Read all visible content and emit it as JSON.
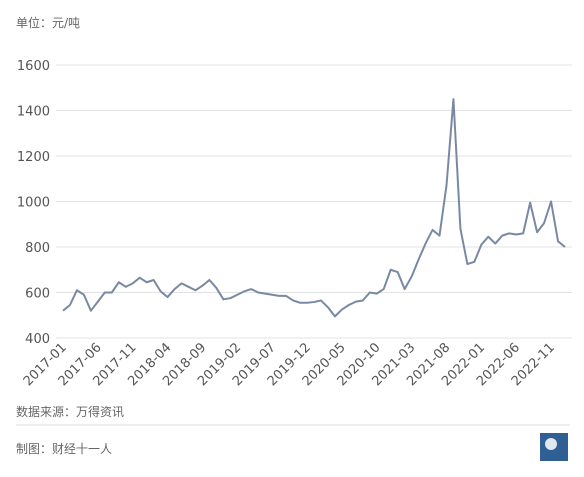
{
  "chart_data": {
    "type": "line",
    "unit": "单位：元/吨",
    "source": "数据来源：万得资讯",
    "credit": "制图：财经十一人",
    "categories": [
      "2017-01",
      null,
      null,
      null,
      null,
      "2017-06",
      null,
      null,
      null,
      null,
      "2017-11",
      null,
      null,
      null,
      null,
      "2018-04",
      null,
      null,
      null,
      null,
      "2018-09",
      null,
      null,
      null,
      null,
      "2019-02",
      null,
      null,
      null,
      null,
      "2019-07",
      null,
      null,
      null,
      null,
      "2019-12",
      null,
      null,
      null,
      null,
      "2020-05",
      null,
      null,
      null,
      null,
      "2020-10",
      null,
      null,
      null,
      null,
      "2021-03",
      null,
      null,
      null,
      null,
      "2021-08",
      null,
      null,
      null,
      null,
      "2022-01",
      null,
      null,
      null,
      null,
      "2022-06",
      null,
      null,
      null,
      null,
      "2022-11",
      null,
      null
    ],
    "values": [
      520,
      545,
      610,
      590,
      520,
      560,
      600,
      600,
      645,
      625,
      640,
      665,
      645,
      655,
      605,
      580,
      615,
      640,
      625,
      610,
      630,
      655,
      620,
      570,
      575,
      590,
      605,
      615,
      600,
      595,
      590,
      585,
      585,
      565,
      555,
      555,
      558,
      565,
      535,
      495,
      525,
      545,
      560,
      565,
      600,
      595,
      615,
      700,
      690,
      615,
      670,
      745,
      815,
      875,
      850,
      1070,
      1450,
      880,
      725,
      735,
      810,
      845,
      815,
      850,
      860,
      855,
      860,
      995,
      865,
      905,
      1000,
      825,
      800
    ],
    "color": "#7a89a3",
    "ylim": [
      400,
      1600
    ],
    "yticks": [
      400,
      600,
      800,
      1000,
      1200,
      1400,
      1600
    ],
    "grid": true
  }
}
